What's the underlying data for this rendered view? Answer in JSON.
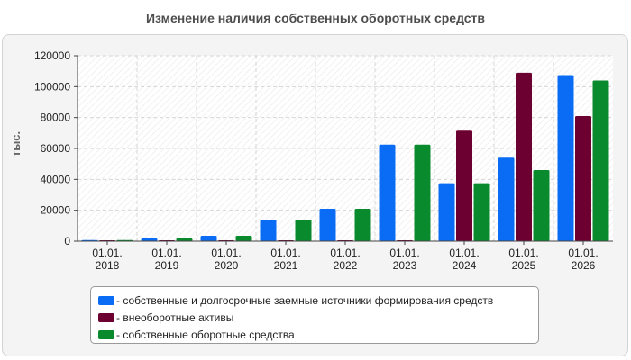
{
  "title": "Изменение наличия собственных оборотных средств",
  "chart_data": {
    "type": "bar",
    "ylabel": "тыс.",
    "xlabel": "",
    "ylim": [
      0,
      120000
    ],
    "yticks": [
      0,
      20000,
      40000,
      60000,
      80000,
      100000,
      120000
    ],
    "grid": true,
    "legend_position": "bottom",
    "categories": [
      [
        "01.01.",
        "2018"
      ],
      [
        "01.01.",
        "2019"
      ],
      [
        "01.01.",
        "2020"
      ],
      [
        "01.01.",
        "2021"
      ],
      [
        "01.01.",
        "2022"
      ],
      [
        "01.01.",
        "2023"
      ],
      [
        "01.01.",
        "2024"
      ],
      [
        "01.01.",
        "2025"
      ],
      [
        "01.01.",
        "2026"
      ]
    ],
    "series": [
      {
        "name": "- собственные и долгосрочные заемные источники формирования средств",
        "color": "#0a6cf4",
        "values": [
          700,
          1800,
          3500,
          14000,
          21000,
          62500,
          37500,
          54000,
          107500
        ]
      },
      {
        "name": "- внеоборотные активы",
        "color": "#6b0031",
        "values": [
          300,
          500,
          500,
          500,
          500,
          500,
          71500,
          109000,
          81000
        ]
      },
      {
        "name": "- собственные оборотные средства",
        "color": "#098a2c",
        "values": [
          700,
          1800,
          3500,
          14000,
          21000,
          62500,
          37500,
          46000,
          104000
        ]
      }
    ]
  }
}
